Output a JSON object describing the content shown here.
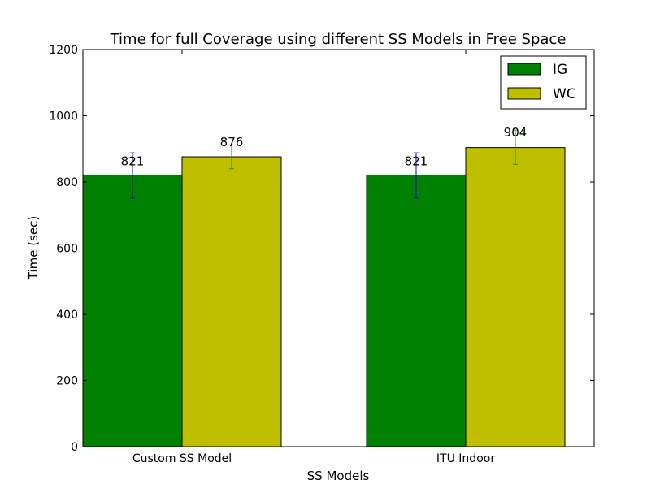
{
  "chart_data": {
    "type": "bar",
    "title": "Time for full Coverage using different SS Models in Free Space",
    "xlabel": "SS Models",
    "ylabel": "Time (sec)",
    "ylim": [
      0,
      1200
    ],
    "yticks": [
      0,
      200,
      400,
      600,
      800,
      1000,
      1200
    ],
    "categories": [
      "Custom SS Model",
      "ITU Indoor"
    ],
    "series": [
      {
        "name": "IG",
        "color": "#008000",
        "error_color": "#0000cc",
        "values": [
          821,
          821
        ],
        "error_low": [
          751,
          751
        ],
        "error_high": [
          888,
          888
        ],
        "labels": [
          "821",
          "821"
        ]
      },
      {
        "name": "WC",
        "color": "#bfbf00",
        "error_color": "#2a8a2a",
        "values": [
          876,
          904
        ],
        "error_low": [
          840,
          853
        ],
        "error_high": [
          912,
          957
        ],
        "labels": [
          "876",
          "904"
        ]
      }
    ],
    "legend_position": "top-right",
    "grid": false
  }
}
